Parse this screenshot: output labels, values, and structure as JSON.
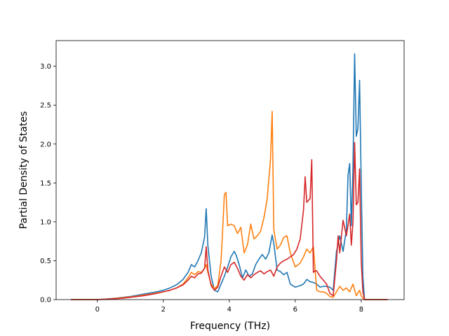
{
  "chart_data": {
    "type": "line",
    "xlabel": "Frequency (THz)",
    "ylabel": "Partial Density of States",
    "xlim": [
      -1.25,
      9.3
    ],
    "ylim": [
      0,
      3.33
    ],
    "xticks": [
      0,
      2,
      4,
      6,
      8
    ],
    "yticks": [
      0.0,
      0.5,
      1.0,
      1.5,
      2.0,
      2.5,
      3.0
    ],
    "grid": false,
    "series": [
      {
        "color": "#1f77b4",
        "x": [
          -0.8,
          -0.6,
          -0.4,
          -0.2,
          0.0,
          0.2,
          0.4,
          0.6,
          0.8,
          1.0,
          1.2,
          1.4,
          1.6,
          1.8,
          2.0,
          2.2,
          2.4,
          2.6,
          2.75,
          2.85,
          2.95,
          3.05,
          3.15,
          3.25,
          3.3,
          3.35,
          3.45,
          3.55,
          3.65,
          3.75,
          3.85,
          3.95,
          4.05,
          4.15,
          4.2,
          4.3,
          4.4,
          4.5,
          4.6,
          4.7,
          4.8,
          4.9,
          5.0,
          5.1,
          5.2,
          5.3,
          5.35,
          5.45,
          5.55,
          5.65,
          5.75,
          5.85,
          6.0,
          6.15,
          6.25,
          6.35,
          6.45,
          6.55,
          6.65,
          6.75,
          6.85,
          6.95,
          7.05,
          7.15,
          7.25,
          7.35,
          7.45,
          7.55,
          7.6,
          7.65,
          7.7,
          7.75,
          7.8,
          7.85,
          7.9,
          7.95,
          8.0,
          8.05,
          8.1,
          8.2,
          8.4,
          8.6,
          8.8
        ],
        "y": [
          0,
          0,
          0,
          0,
          0.0,
          0.005,
          0.012,
          0.02,
          0.03,
          0.04,
          0.055,
          0.07,
          0.085,
          0.1,
          0.12,
          0.15,
          0.19,
          0.26,
          0.35,
          0.45,
          0.42,
          0.5,
          0.6,
          0.8,
          1.17,
          0.7,
          0.3,
          0.12,
          0.1,
          0.2,
          0.3,
          0.42,
          0.55,
          0.62,
          0.58,
          0.45,
          0.28,
          0.38,
          0.3,
          0.33,
          0.45,
          0.52,
          0.58,
          0.52,
          0.6,
          0.83,
          0.72,
          0.38,
          0.36,
          0.32,
          0.35,
          0.2,
          0.16,
          0.18,
          0.2,
          0.26,
          0.23,
          0.22,
          0.2,
          0.16,
          0.17,
          0.17,
          0.16,
          0.12,
          0.62,
          0.82,
          0.62,
          0.9,
          1.6,
          1.75,
          0.95,
          1.7,
          3.16,
          2.1,
          2.2,
          2.82,
          1.5,
          0.3,
          0.0,
          0,
          0,
          0,
          0
        ]
      },
      {
        "color": "#ff7f0e",
        "x": [
          -0.8,
          -0.6,
          -0.4,
          -0.2,
          0.0,
          0.2,
          0.4,
          0.6,
          0.8,
          1.0,
          1.2,
          1.4,
          1.6,
          1.8,
          2.0,
          2.2,
          2.4,
          2.6,
          2.75,
          2.85,
          2.95,
          3.05,
          3.15,
          3.25,
          3.3,
          3.35,
          3.45,
          3.55,
          3.65,
          3.75,
          3.8,
          3.85,
          3.9,
          3.95,
          4.05,
          4.15,
          4.25,
          4.35,
          4.45,
          4.55,
          4.65,
          4.75,
          4.85,
          4.95,
          5.05,
          5.15,
          5.25,
          5.3,
          5.35,
          5.45,
          5.55,
          5.65,
          5.75,
          5.85,
          6.0,
          6.15,
          6.25,
          6.35,
          6.45,
          6.55,
          6.65,
          6.75,
          6.85,
          6.95,
          7.05,
          7.15,
          7.25,
          7.35,
          7.45,
          7.55,
          7.65,
          7.75,
          7.85,
          7.95,
          8.0,
          8.05,
          8.1,
          8.2,
          8.4,
          8.6,
          8.8
        ],
        "y": [
          0,
          0,
          0,
          0,
          0.0,
          0.005,
          0.01,
          0.018,
          0.025,
          0.035,
          0.045,
          0.058,
          0.07,
          0.085,
          0.1,
          0.12,
          0.15,
          0.2,
          0.28,
          0.35,
          0.32,
          0.36,
          0.35,
          0.4,
          0.45,
          0.35,
          0.2,
          0.14,
          0.18,
          0.5,
          0.9,
          1.35,
          1.38,
          0.95,
          0.97,
          0.95,
          0.85,
          0.93,
          0.6,
          0.7,
          0.97,
          0.78,
          0.82,
          0.88,
          1.05,
          1.3,
          1.8,
          2.42,
          0.9,
          0.65,
          0.7,
          0.8,
          0.82,
          0.6,
          0.42,
          0.47,
          0.55,
          0.65,
          0.6,
          0.68,
          0.12,
          0.1,
          0.1,
          0.08,
          0.04,
          0.03,
          0.1,
          0.17,
          0.12,
          0.15,
          0.1,
          0.2,
          0.05,
          0.12,
          0.05,
          0.02,
          0.0,
          0,
          0,
          0,
          0
        ]
      },
      {
        "color": "#d62728",
        "x": [
          -0.8,
          -0.6,
          -0.4,
          -0.2,
          0.0,
          0.2,
          0.4,
          0.6,
          0.8,
          1.0,
          1.2,
          1.4,
          1.6,
          1.8,
          2.0,
          2.2,
          2.4,
          2.6,
          2.75,
          2.85,
          2.95,
          3.05,
          3.15,
          3.25,
          3.3,
          3.35,
          3.45,
          3.55,
          3.65,
          3.75,
          3.85,
          3.95,
          4.05,
          4.15,
          4.25,
          4.35,
          4.45,
          4.55,
          4.65,
          4.75,
          4.85,
          4.95,
          5.05,
          5.15,
          5.25,
          5.35,
          5.45,
          5.55,
          5.65,
          5.75,
          5.85,
          5.95,
          6.05,
          6.15,
          6.25,
          6.3,
          6.35,
          6.45,
          6.5,
          6.55,
          6.6,
          6.65,
          6.75,
          6.85,
          6.95,
          7.05,
          7.15,
          7.25,
          7.3,
          7.35,
          7.45,
          7.55,
          7.65,
          7.7,
          7.75,
          7.8,
          7.85,
          7.9,
          7.95,
          8.0,
          8.05,
          8.1,
          8.2,
          8.4,
          8.6,
          8.8
        ],
        "y": [
          0,
          0,
          0,
          0,
          0.0,
          0.004,
          0.008,
          0.013,
          0.02,
          0.03,
          0.04,
          0.05,
          0.065,
          0.08,
          0.1,
          0.12,
          0.15,
          0.19,
          0.25,
          0.3,
          0.28,
          0.33,
          0.34,
          0.4,
          0.68,
          0.38,
          0.18,
          0.12,
          0.16,
          0.3,
          0.42,
          0.35,
          0.45,
          0.48,
          0.4,
          0.3,
          0.25,
          0.32,
          0.28,
          0.32,
          0.35,
          0.37,
          0.33,
          0.36,
          0.38,
          0.3,
          0.42,
          0.47,
          0.5,
          0.52,
          0.55,
          0.58,
          0.65,
          0.78,
          1.15,
          1.58,
          1.25,
          1.3,
          1.8,
          0.35,
          0.37,
          0.37,
          0.3,
          0.25,
          0.2,
          0.08,
          0.05,
          0.5,
          0.82,
          0.6,
          1.02,
          0.82,
          1.1,
          0.7,
          1.0,
          2.02,
          1.22,
          1.25,
          1.68,
          0.5,
          0.1,
          0.0,
          0,
          0,
          0,
          0
        ]
      }
    ]
  }
}
